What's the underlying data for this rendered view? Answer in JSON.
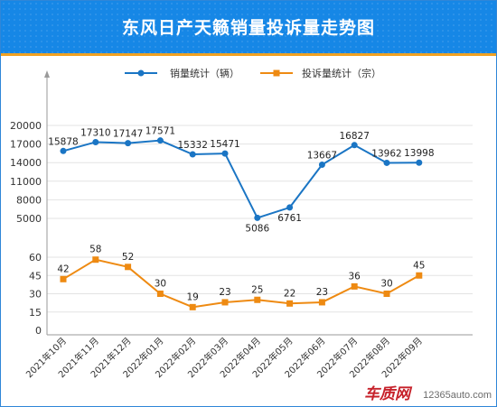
{
  "title": "东风日产天籁销量投诉量走势图",
  "colors": {
    "sales": "#1a75c4",
    "complaints": "#ee8a12",
    "title_bg": "#1687e6",
    "accent": "#f0a223"
  },
  "legend": {
    "sales": "销量统计（辆）",
    "complaints": "投诉量统计（宗）",
    "placement": "top-center"
  },
  "watermark": {
    "brand": "车质网",
    "site": "12365auto.com"
  },
  "chart_data": [
    {
      "type": "line",
      "name": "sales",
      "series_name": "销量统计（辆）",
      "categories": [
        "2021年10月",
        "2021年11月",
        "2021年12月",
        "2022年01月",
        "2022年02月",
        "2022年03月",
        "2022年04月",
        "2022年05月",
        "2022年06月",
        "2022年07月",
        "2022年08月",
        "2022年09月"
      ],
      "values": [
        15878,
        17310,
        17147,
        17571,
        15332,
        15471,
        5086,
        6761,
        13667,
        16827,
        13962,
        13998
      ],
      "yticks": [
        5000,
        8000,
        11000,
        14000,
        17000,
        20000
      ],
      "ylim": [
        5000,
        20000
      ],
      "grid": true
    },
    {
      "type": "line",
      "name": "complaints",
      "series_name": "投诉量统计（宗）",
      "categories": [
        "2021年10月",
        "2021年11月",
        "2021年12月",
        "2022年01月",
        "2022年02月",
        "2022年03月",
        "2022年04月",
        "2022年05月",
        "2022年06月",
        "2022年07月",
        "2022年08月",
        "2022年09月"
      ],
      "values": [
        42,
        58,
        52,
        30,
        19,
        23,
        25,
        22,
        23,
        36,
        30,
        45
      ],
      "yticks": [
        0,
        15,
        30,
        45,
        60
      ],
      "ylim": [
        0,
        60
      ],
      "grid": true
    }
  ]
}
